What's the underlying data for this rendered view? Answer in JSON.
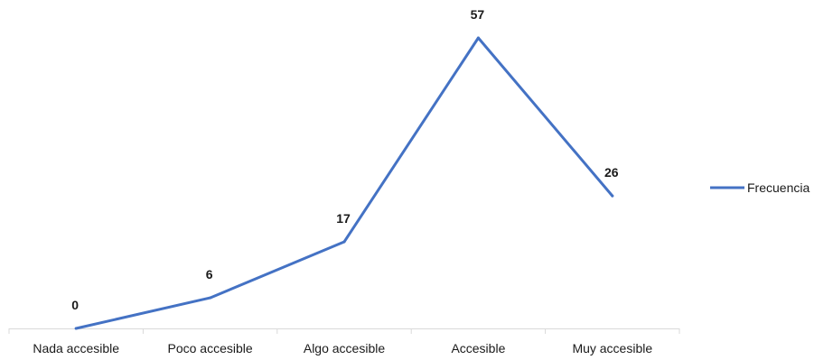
{
  "chart_data": {
    "type": "line",
    "categories": [
      "Nada accesible",
      "Poco accesible",
      "Algo accesible",
      "Accesible",
      "Muy accesible"
    ],
    "series": [
      {
        "name": "Frecuencia",
        "values": [
          0,
          6,
          17,
          57,
          26
        ],
        "color": "#4472C4"
      }
    ],
    "title": "",
    "xlabel": "",
    "ylabel": "",
    "ylim": [
      0,
      57
    ],
    "grid": false,
    "data_labels": true,
    "legend_position": "right"
  }
}
